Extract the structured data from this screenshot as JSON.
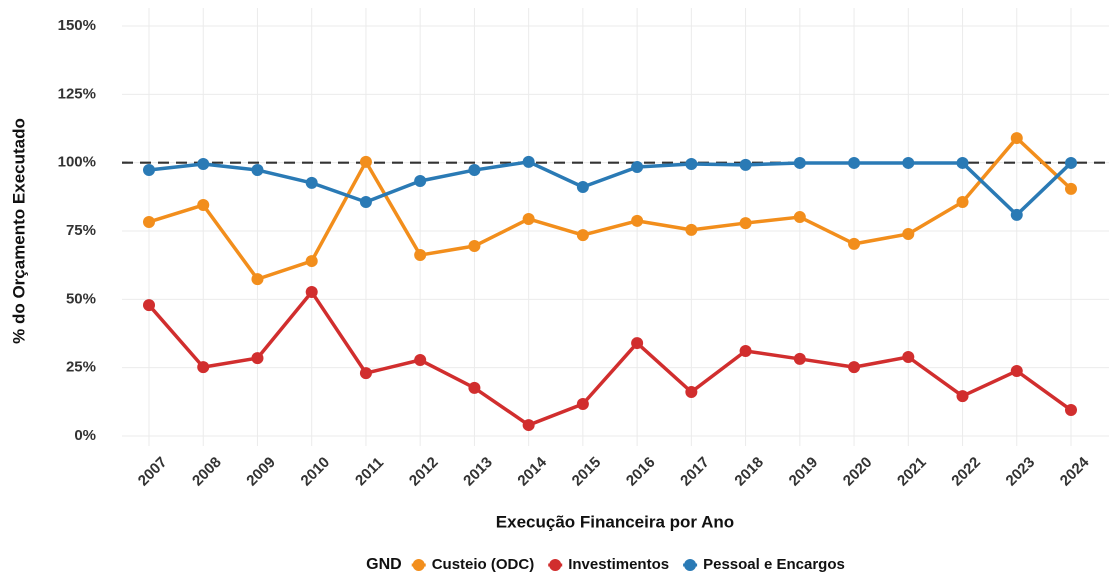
{
  "chart_data": {
    "type": "line",
    "x_label": "Execução Financeira por Ano",
    "y_label": "% do Orçamento Executado",
    "legend_title": "GND",
    "legend_position": "bottom",
    "grid": true,
    "reference_line": 100,
    "categories": [
      "2007",
      "2008",
      "2009",
      "2010",
      "2011",
      "2012",
      "2013",
      "2014",
      "2015",
      "2016",
      "2017",
      "2018",
      "2019",
      "2020",
      "2021",
      "2022",
      "2023",
      "2024"
    ],
    "series": [
      {
        "name": "Custeio (ODC)",
        "color": "#f28e1c",
        "values": [
          78.3,
          84.5,
          57.4,
          64.0,
          100.3,
          66.2,
          69.5,
          79.4,
          73.5,
          78.7,
          75.4,
          77.9,
          80.1,
          70.3,
          73.9,
          85.6,
          109.0,
          90.4
        ]
      },
      {
        "name": "Investimentos",
        "color": "#d12e2e",
        "values": [
          47.9,
          25.2,
          28.5,
          52.7,
          23.0,
          27.8,
          17.6,
          4.0,
          11.7,
          34.0,
          16.1,
          31.1,
          28.2,
          25.2,
          28.9,
          14.6,
          23.8,
          9.5
        ]
      },
      {
        "name": "Pessoal e Encargos",
        "color": "#2a7ab5",
        "values": [
          97.3,
          99.5,
          97.3,
          92.6,
          85.6,
          93.3,
          97.3,
          100.3,
          91.1,
          98.4,
          99.5,
          99.2,
          99.9,
          99.9,
          99.9,
          99.9,
          80.9,
          99.9
        ]
      }
    ],
    "ylim": [
      0,
      150
    ],
    "yticks": [
      {
        "value": 0,
        "label": "0%"
      },
      {
        "value": 25,
        "label": "25%"
      },
      {
        "value": 50,
        "label": "50%"
      },
      {
        "value": 75,
        "label": "75%"
      },
      {
        "value": 100,
        "label": "100%"
      },
      {
        "value": 125,
        "label": "125%"
      },
      {
        "value": 150,
        "label": "150%"
      }
    ]
  }
}
